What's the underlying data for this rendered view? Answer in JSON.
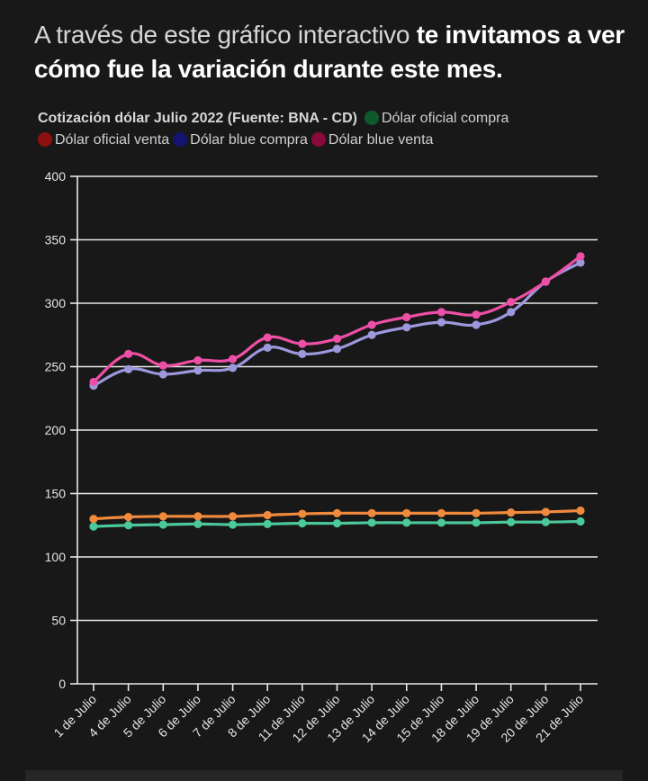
{
  "intro": {
    "normal": "A través de este gráfico interactivo ",
    "bold": "te invitamos a ver cómo fue la variación durante este mes."
  },
  "chart_data": {
    "type": "line",
    "title": "Cotización dólar Julio 2022 (Fuente: BNA - CD)",
    "legend_placement": "top",
    "grid": true,
    "ylim": [
      0,
      400
    ],
    "yticks": [
      0,
      50,
      100,
      150,
      200,
      250,
      300,
      350,
      400
    ],
    "categories": [
      "1 de Julio",
      "4 de Julio",
      "5 de Julio",
      "6 de Julio",
      "7 de Julio",
      "8 de Julio",
      "11 de Julio",
      "12 de Julio",
      "13 de Julio",
      "14 de Julio",
      "15 de Julio",
      "18 de Julio",
      "19 de Julio",
      "20 de Julio",
      "21 de Julio"
    ],
    "series": [
      {
        "name": "Dólar oficial compra",
        "legend_color": "#0f5a2a",
        "line_color": "#4cc99a",
        "values": [
          124,
          125,
          125.5,
          126,
          125.5,
          126,
          126.5,
          126.5,
          127,
          127,
          127,
          127,
          127.5,
          127.5,
          128
        ]
      },
      {
        "name": "Dólar oficial venta",
        "legend_color": "#8c1010",
        "line_color": "#f08a3c",
        "values": [
          130,
          131.5,
          132,
          132,
          132,
          133,
          134,
          134.5,
          134.5,
          134.5,
          134.5,
          134.5,
          135,
          135.5,
          136.5
        ]
      },
      {
        "name": "Dólar blue compra",
        "legend_color": "#141470",
        "line_color": "#9d97dc",
        "values": [
          235,
          248,
          244,
          247,
          249,
          265,
          260,
          264,
          275,
          281,
          285,
          283,
          293,
          317,
          332
        ]
      },
      {
        "name": "Dólar blue venta",
        "legend_color": "#8a0a3c",
        "line_color": "#ee4fa6",
        "values": [
          238,
          260,
          251,
          255,
          256,
          273,
          268,
          272,
          283,
          289,
          293,
          291,
          301,
          317,
          337
        ]
      }
    ]
  }
}
